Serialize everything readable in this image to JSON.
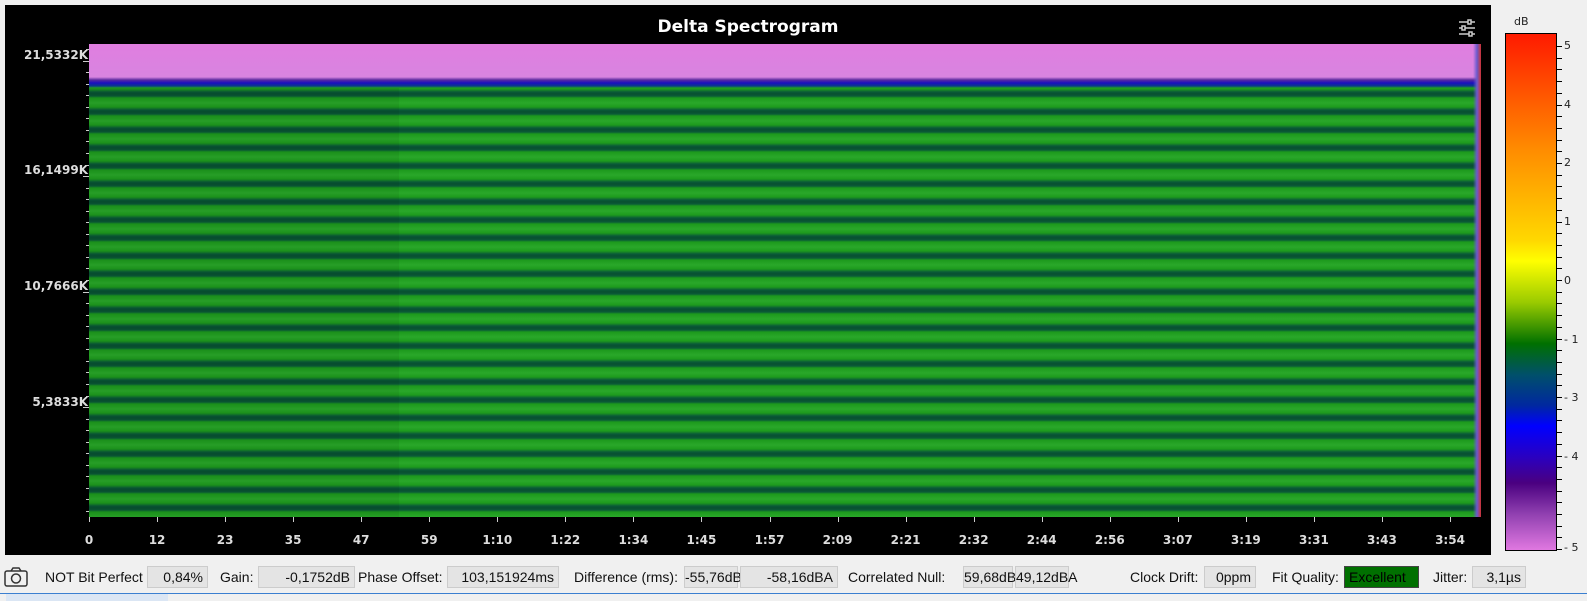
{
  "title": "Delta Spectrogram",
  "y_ticks": [
    "21,5332K",
    "16,1499K",
    "10,7666K",
    "5,3833K"
  ],
  "x_ticks": [
    "0",
    "12",
    "23",
    "35",
    "47",
    "59",
    "1:10",
    "1:22",
    "1:34",
    "1:45",
    "1:57",
    "2:09",
    "2:21",
    "2:32",
    "2:44",
    "2:56",
    "3:07",
    "3:19",
    "3:31",
    "3:43",
    "3:54"
  ],
  "colorbar": {
    "unit": "dB",
    "labels": [
      "5",
      "4",
      "2",
      "1",
      "0",
      "- 1",
      "- 3",
      "- 4",
      "- 5"
    ]
  },
  "status": {
    "bit_perfect": "NOT Bit Perfect",
    "bit_perfect_value": "0,84%",
    "gain_label": "Gain:",
    "gain": "-0,1752dB",
    "phase_label": "Phase Offset:",
    "phase": "103,151924ms",
    "diff_label": "Difference (rms):",
    "diff_db": "-55,76dB",
    "diff_dba": "-58,16dBA",
    "null_label": "Correlated Null:",
    "null_db": "59,68dB",
    "null_dba": "49,12dBA",
    "drift_label": "Clock Drift:",
    "drift": "0ppm",
    "fit_label": "Fit Quality:",
    "fit": "Excellent",
    "jitter_label": "Jitter:",
    "jitter": "3,1µs"
  }
}
